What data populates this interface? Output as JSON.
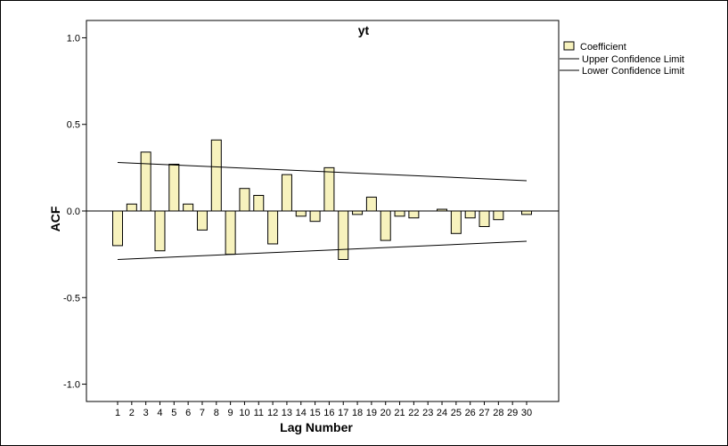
{
  "chart_data": {
    "type": "bar",
    "title": "yt",
    "xlabel": "Lag Number",
    "ylabel": "ACF",
    "ylim": [
      -1.1,
      1.1
    ],
    "yticks": [
      "1.0",
      "0.5",
      "0.0",
      "-0.5",
      "-1.0"
    ],
    "categories": [
      "1",
      "2",
      "3",
      "4",
      "5",
      "6",
      "7",
      "8",
      "9",
      "10",
      "11",
      "12",
      "13",
      "14",
      "15",
      "16",
      "17",
      "18",
      "19",
      "20",
      "21",
      "22",
      "23",
      "24",
      "25",
      "26",
      "27",
      "28",
      "29",
      "30"
    ],
    "series": [
      {
        "name": "Coefficient",
        "values": [
          -0.2,
          0.04,
          0.34,
          -0.23,
          0.27,
          0.04,
          -0.11,
          0.41,
          -0.25,
          0.13,
          0.09,
          -0.19,
          0.21,
          -0.03,
          -0.06,
          0.25,
          -0.28,
          -0.02,
          0.08,
          -0.17,
          -0.03,
          -0.04,
          0.0,
          0.01,
          -0.13,
          -0.04,
          -0.09,
          -0.05,
          0.0,
          -0.02
        ]
      }
    ],
    "upper_confidence_limit": {
      "name": "Upper Confidence Limit",
      "start": 0.28,
      "end": 0.175
    },
    "lower_confidence_limit": {
      "name": "Lower Confidence Limit",
      "start": -0.28,
      "end": -0.175
    },
    "legend": {
      "position": "top-right",
      "items": [
        "Coefficient",
        "Upper Confidence Limit",
        "Lower Confidence Limit"
      ]
    },
    "colors": {
      "bar_fill": "#f7f2bd",
      "bar_stroke": "#000000",
      "line": "#000000"
    }
  }
}
